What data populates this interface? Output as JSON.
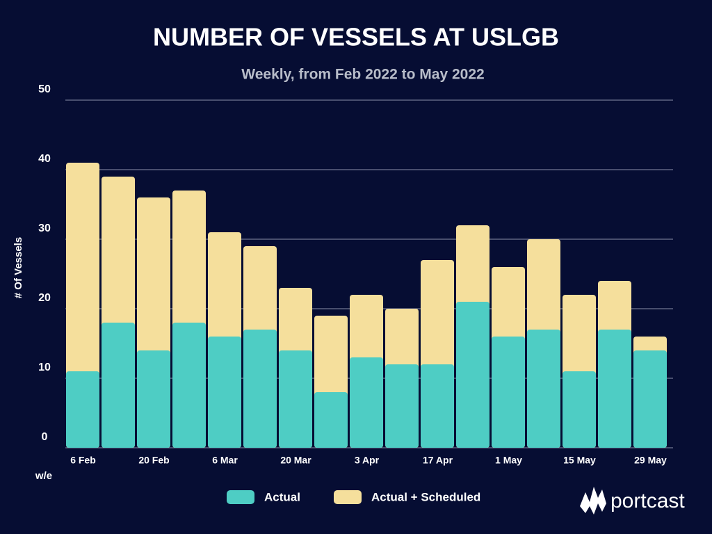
{
  "chart_data": {
    "type": "bar",
    "overlap": true,
    "title": "NUMBER OF VESSELS AT USLGB",
    "subtitle": "Weekly, from Feb 2022 to May 2022",
    "y_label": "# Of Vessels",
    "x_label": "w/e",
    "categories": [
      "6 Feb",
      null,
      "20 Feb",
      null,
      "6 Mar",
      null,
      "20 Mar",
      null,
      "3 Apr",
      null,
      "17 Apr",
      null,
      "1 May",
      null,
      "15 May",
      null,
      "29 May"
    ],
    "series": [
      {
        "name": "Actual + Scheduled",
        "color": "#f5df9c",
        "values": [
          41,
          39,
          36,
          37,
          31,
          29,
          23,
          19,
          22,
          20,
          27,
          32,
          26,
          30,
          22,
          24,
          16
        ]
      },
      {
        "name": "Actual",
        "color": "#4ecdc4",
        "values": [
          11,
          18,
          14,
          18,
          16,
          17,
          14,
          8,
          13,
          12,
          12,
          21,
          16,
          17,
          11,
          17,
          14
        ]
      }
    ],
    "ylim": [
      0,
      50
    ],
    "yticks": [
      0,
      10,
      20,
      30,
      40,
      50
    ],
    "grid": true,
    "brand": "portcast"
  }
}
